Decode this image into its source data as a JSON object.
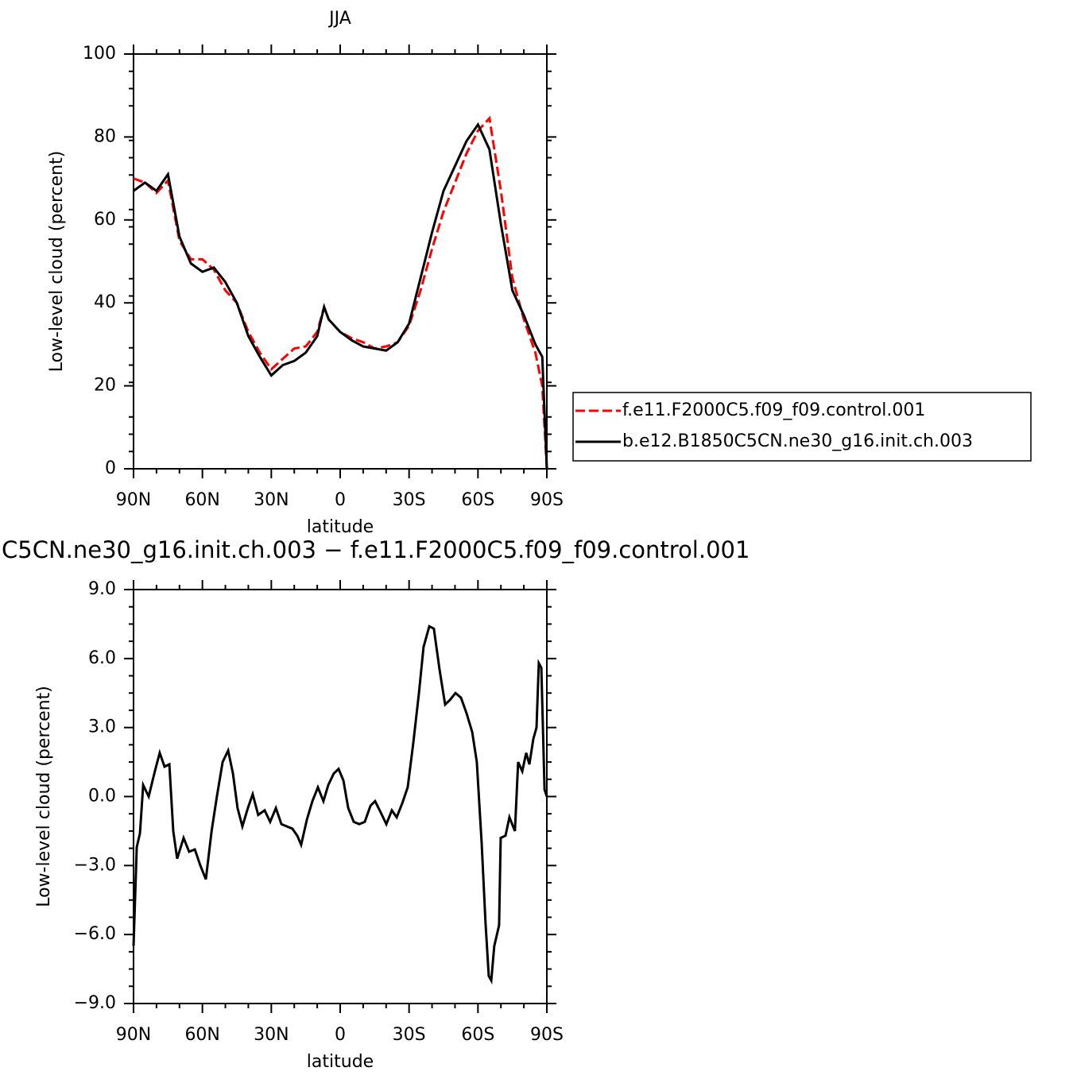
{
  "chart_data": [
    {
      "type": "line",
      "title": "JJA",
      "xlabel": "latitude",
      "ylabel": "Low-level cloud (percent)",
      "x": [
        90,
        85,
        80,
        75,
        70,
        65,
        60,
        55,
        50,
        45,
        40,
        35,
        30,
        25,
        20,
        15,
        10,
        7,
        5,
        0,
        -5,
        -10,
        -15,
        -20,
        -25,
        -30,
        -35,
        -40,
        -45,
        -50,
        -55,
        -60,
        -65,
        -70,
        -75,
        -80,
        -85,
        -88,
        -90
      ],
      "series": [
        {
          "name": "f.e11.F2000C5.f09_f09.control.001",
          "color": "#ff0000",
          "dashed": true,
          "values": [
            70,
            69,
            66.5,
            69.5,
            55,
            50.5,
            50.5,
            48,
            43,
            40,
            33,
            28,
            24,
            26.5,
            29,
            29.5,
            33,
            39,
            36,
            33,
            31.5,
            30.5,
            29,
            29.5,
            30.5,
            34.5,
            43,
            53,
            62,
            69,
            76,
            81.5,
            84.5,
            67,
            46,
            36,
            28,
            20,
            0
          ]
        },
        {
          "name": "b.e12.B1850C5CN.ne30_g16.init.ch.003",
          "color": "#000000",
          "dashed": false,
          "values": [
            67,
            69,
            67,
            71,
            56,
            49.5,
            47.5,
            48.5,
            45,
            40,
            32,
            27,
            22.5,
            25,
            26,
            28,
            32,
            39,
            36,
            33,
            31,
            29.5,
            29,
            28.5,
            30.5,
            35,
            46,
            57,
            67,
            73,
            79,
            83,
            77,
            59,
            43,
            37,
            30,
            27,
            0
          ]
        }
      ],
      "xlim": [
        90,
        -90
      ],
      "xticks": [
        {
          "value": 90,
          "label": "90N"
        },
        {
          "value": 60,
          "label": "60N"
        },
        {
          "value": 30,
          "label": "30N"
        },
        0,
        {
          "value": -30,
          "label": "30S"
        },
        {
          "value": -60,
          "label": "60S"
        },
        {
          "value": -90,
          "label": "90S"
        }
      ],
      "ylim": [
        0,
        100
      ],
      "yticks": [
        0,
        20,
        40,
        60,
        80,
        100
      ],
      "legend": "right"
    },
    {
      "type": "line",
      "title": "C5CN.ne30_g16.init.ch.003 − f.e11.F2000C5.f09_f09.control.001",
      "xlabel": "latitude",
      "ylabel": "Low-level cloud (percent)",
      "x": [
        90,
        88.6,
        87.2,
        85.8,
        83.4,
        80.7,
        78.6,
        76.5,
        74.4,
        72.7,
        71,
        68.2,
        65.8,
        63.3,
        60.9,
        58.5,
        56,
        53.7,
        51.2,
        48.8,
        46.7,
        44.7,
        42.6,
        40.2,
        38.1,
        35.7,
        32.9,
        30.5,
        28,
        25.6,
        23.2,
        20.8,
        18.7,
        17,
        14.5,
        12.1,
        9.7,
        7.3,
        5.2,
        2.8,
        0.7,
        -1.4,
        -3.5,
        -5.9,
        -8.3,
        -10.7,
        -13.2,
        -15.2,
        -17.7,
        -20.1,
        -22.5,
        -24.6,
        -27,
        -29.4,
        -31.8,
        -34.3,
        -36.3,
        -38.8,
        -40.8,
        -43.3,
        -45.7,
        -47.8,
        -50.2,
        -52.6,
        -55.1,
        -57.5,
        -59.5,
        -61.6,
        -63.3,
        -64.7,
        -65.8,
        -67.1,
        -69.2,
        -69.9,
        -72,
        -73.7,
        -76.1,
        -77.5,
        -79.3,
        -81,
        -82.4,
        -84.1,
        -85.5,
        -86.5,
        -87.6,
        -89,
        -90
      ],
      "series": [
        {
          "color": "#000000",
          "dashed": false,
          "values": [
            -6.5,
            -2.2,
            -1.6,
            0.5,
            0,
            1.1,
            1.9,
            1.3,
            1.4,
            -1.5,
            -2.7,
            -1.8,
            -2.4,
            -2.3,
            -3,
            -3.6,
            -1.5,
            0,
            1.5,
            2,
            1,
            -0.5,
            -1.3,
            -0.5,
            0.1,
            -0.8,
            -0.6,
            -1.1,
            -0.5,
            -1.2,
            -1.3,
            -1.4,
            -1.7,
            -2.1,
            -1,
            -0.2,
            0.4,
            -0.2,
            0.5,
            1,
            1.2,
            0.7,
            -0.5,
            -1.1,
            -1.2,
            -1.1,
            -0.4,
            -0.2,
            -0.7,
            -1.2,
            -0.6,
            -0.9,
            -0.3,
            0.4,
            2.3,
            4.5,
            6.5,
            7.4,
            7.3,
            5.5,
            4,
            4.2,
            4.5,
            4.3,
            3.6,
            2.8,
            1.5,
            -2,
            -5.5,
            -7.8,
            -8,
            -6.5,
            -5.6,
            -1.8,
            -1.7,
            -0.9,
            -1.5,
            1.5,
            1.1,
            1.9,
            1.4,
            2.5,
            3,
            5.8,
            5.6,
            0.3,
            0
          ]
        }
      ],
      "xlim": [
        90,
        -90
      ],
      "xticks": [
        {
          "value": 90,
          "label": "90N"
        },
        {
          "value": 60,
          "label": "60N"
        },
        {
          "value": 30,
          "label": "30N"
        },
        0,
        {
          "value": -30,
          "label": "30S"
        },
        {
          "value": -60,
          "label": "60S"
        },
        {
          "value": -90,
          "label": "90S"
        }
      ],
      "ylim": [
        -9,
        9
      ],
      "yticks": [
        {
          "value": -9,
          "label": "−9.0"
        },
        {
          "value": -6,
          "label": "−6.0"
        },
        {
          "value": -3,
          "label": "−3.0"
        },
        {
          "value": 0,
          "label": "0.0"
        },
        {
          "value": 3,
          "label": "3.0"
        },
        {
          "value": 6,
          "label": "6.0"
        },
        {
          "value": 9,
          "label": "9.0"
        }
      ]
    }
  ]
}
